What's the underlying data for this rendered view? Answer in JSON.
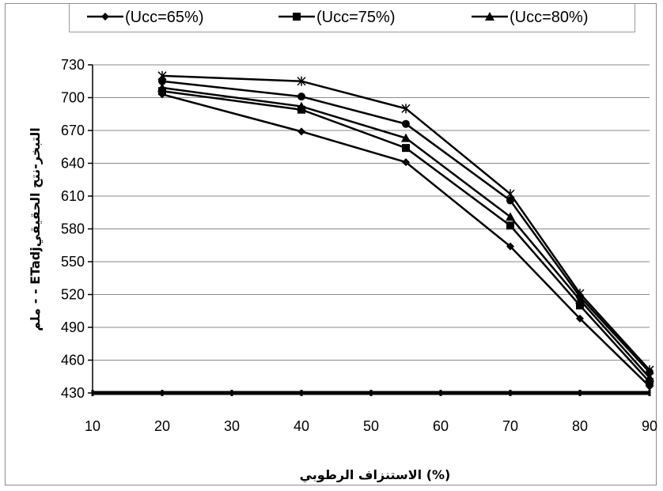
{
  "chart_data": {
    "type": "line",
    "xlabel": "الاستنزاف الرطوبي (%)",
    "ylabel": "ملم - - ETadjالتبخر-نتح الحقيقي",
    "xlim": [
      10,
      90
    ],
    "ylim": [
      430,
      730
    ],
    "x_ticks": [
      10,
      20,
      30,
      40,
      50,
      60,
      70,
      80,
      90
    ],
    "y_ticks": [
      430,
      460,
      490,
      520,
      550,
      580,
      610,
      640,
      670,
      700,
      730
    ],
    "grid": "horizontal",
    "legend_position": "top",
    "x": [
      20,
      40,
      55,
      70,
      80,
      90
    ],
    "series": [
      {
        "name": "(Ucc=65%)",
        "marker": "diamond",
        "values": [
          703,
          669,
          641,
          564,
          498,
          436
        ]
      },
      {
        "name": "(Ucc=75%)",
        "marker": "square",
        "values": [
          706,
          689,
          654,
          583,
          510,
          440
        ]
      },
      {
        "name": "(Ucc=80%)",
        "marker": "triangle",
        "values": [
          709,
          692,
          663,
          591,
          515,
          444
        ]
      },
      {
        "marker": "circle",
        "values": [
          715,
          701,
          676,
          606,
          518,
          449
        ]
      },
      {
        "marker": "star",
        "values": [
          720,
          715,
          690,
          612,
          521,
          451
        ]
      }
    ]
  }
}
